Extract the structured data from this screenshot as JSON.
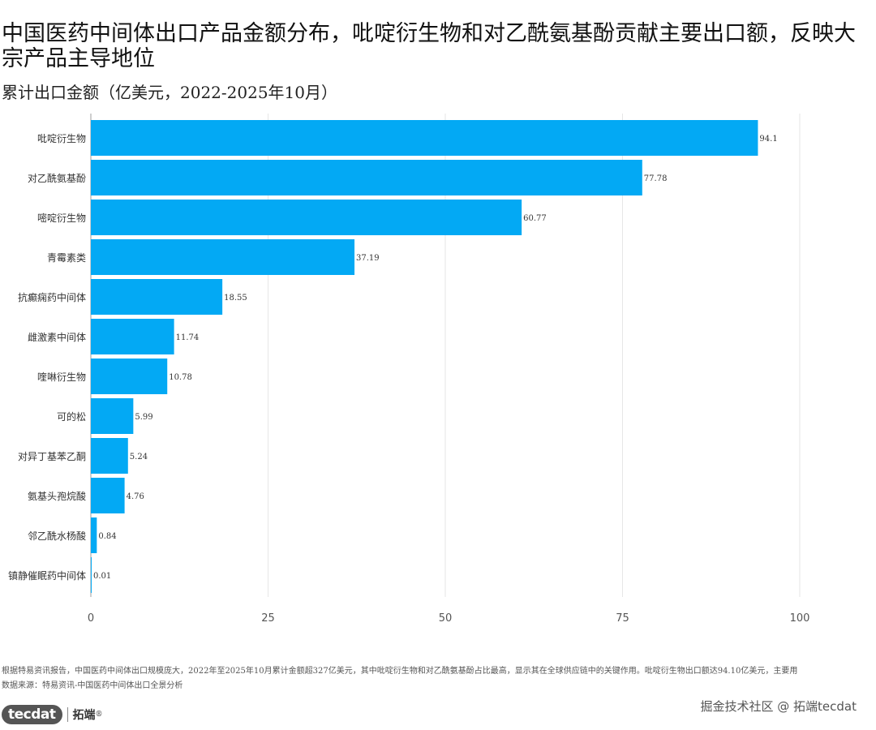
{
  "title": "中国医药中间体出口产品金额分布，吡啶衍生物和对乙酰氨基酚贡献主要出口额，反映大宗产品主导地位",
  "subtitle": "累计出口金额（亿美元，2022-2025年10月）",
  "footnote": "根据特易资讯报告，中国医药中间体出口规模庞大，2022年至2025年10月累计金额超327亿美元，其中吡啶衍生物和对乙酰氨基酚占比最高，显示其在全球供应链中的关键作用。吡啶衍生物出口额达94.10亿美元，主要用",
  "source": "数据来源：特易资讯-中国医药中间体出口全景分析",
  "logo": {
    "badge": "tecdat",
    "name": "拓端",
    "reg": "®"
  },
  "watermark": "掘金技术社区 @ 拓端tecdat",
  "colors": {
    "bar": "#03a9f4",
    "grid": "#e6e6e6",
    "axis": "#9e9e9e"
  },
  "chart_data": {
    "type": "bar",
    "orientation": "horizontal",
    "categories": [
      "吡啶衍生物",
      "对乙酰氨基酚",
      "嘧啶衍生物",
      "青霉素类",
      "抗癫痫药中间体",
      "雌激素中间体",
      "喹啉衍生物",
      "可的松",
      "对异丁基苯乙酮",
      "氨基头孢烷酸",
      "邻乙酰水杨酸",
      "镇静催眠药中间体"
    ],
    "values": [
      94.1,
      77.78,
      60.77,
      37.19,
      18.55,
      11.74,
      10.78,
      5.99,
      5.24,
      4.76,
      0.84,
      0.01
    ],
    "value_labels": [
      "94.1",
      "77.78",
      "60.77",
      "37.19",
      "18.55",
      "11.74",
      "10.78",
      "5.99",
      "5.24",
      "4.76",
      "0.84",
      "0.01"
    ],
    "xlim": [
      0,
      100
    ],
    "xticks": [
      0,
      25,
      50,
      75,
      100
    ],
    "grid": true,
    "xlabel": "",
    "ylabel": ""
  }
}
